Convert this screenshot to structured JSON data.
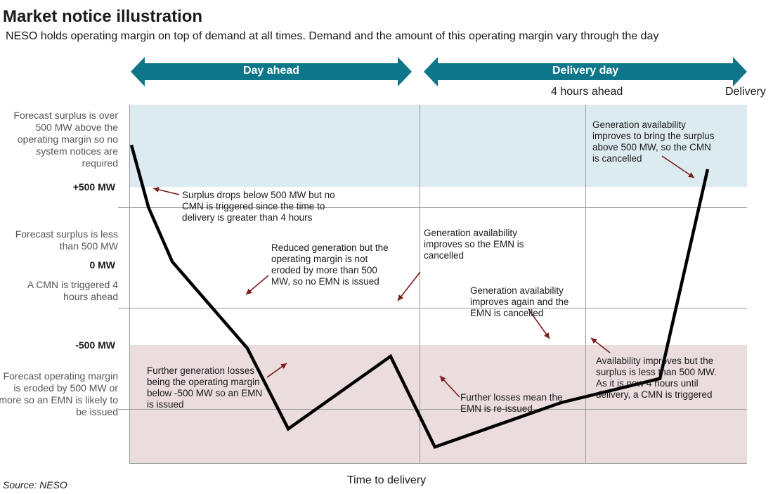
{
  "title": "Market notice illustration",
  "subtitle": "NESO holds operating margin on top of demand at all times. Demand and the amount of this operating margin vary through the day",
  "source": "Source: NESO",
  "colors": {
    "accent": "#0e768a",
    "surplus_zone": "#dcebf0",
    "emn_zone": "#ebdcde",
    "line": "#000000",
    "arrow": "#7a1a1a",
    "grid": "#999999"
  },
  "banners": {
    "day_ahead": "Day ahead",
    "delivery_day": "Delivery day"
  },
  "phase_labels": {
    "four_hours": "4 hours ahead",
    "delivery": "Delivery"
  },
  "zones": {
    "top": "Forecast surplus is over 500 MW above the operating margin so no system notices are required",
    "upper": "Forecast surplus is less than 500 MW",
    "lower": "A CMN is triggered 4 hours ahead",
    "bottom": "Forecast operating margin is eroded by 500 MW or more so an EMN is likely to be issued"
  },
  "annotations": {
    "a1": "Surplus drops below 500 MW but no CMN is triggered since the time to delivery is greater than 4 hours",
    "a2": "Reduced generation but the operating margin is not eroded by more than 500 MW, so no EMN is issued",
    "a3": "Further generation losses being the operating margin below -500 MW so an EMN is issued",
    "a4": "Generation availability improves so the EMN is cancelled",
    "a5": "Further losses mean the EMN is re-issued",
    "a6": "Generation availability improves again and the EMN is cancelled",
    "a7": "Availability improves but the surplus is less than 500 MW. As it is now 4 hours until delivery, a CMN is triggered",
    "a8": "Generation availability improves to bring the surplus above 500 MW, so the CMN is cancelled"
  },
  "chart_data": {
    "type": "line",
    "title": "Market notice illustration",
    "xlabel": "Time to delivery",
    "ylabel": "",
    "y_ticks": [
      {
        "value": 500,
        "label": "+500 MW"
      },
      {
        "value": 0,
        "label": "0 MW"
      },
      {
        "value": -500,
        "label": "-500 MW"
      }
    ],
    "ylim": [
      -770,
      1010
    ],
    "series": [
      {
        "x": [
          0,
          5,
          12,
          34,
          46,
          76,
          89,
          126,
          155,
          169
        ],
        "y": [
          810,
          500,
          230,
          -200,
          -600,
          -240,
          -690,
          -470,
          -350,
          690
        ]
      }
    ]
  }
}
